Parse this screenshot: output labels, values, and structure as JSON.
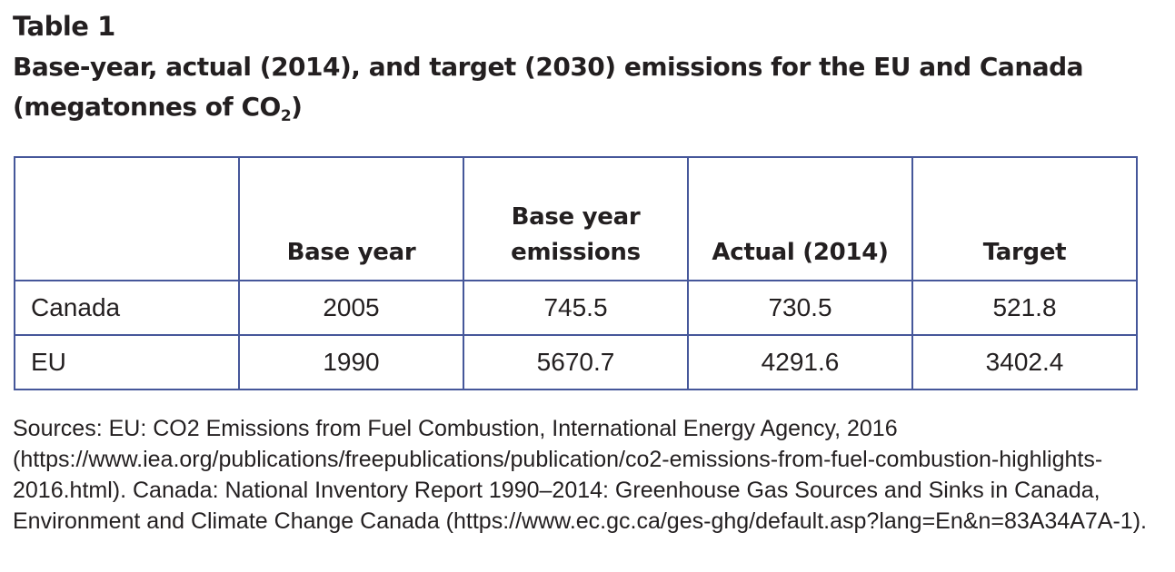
{
  "heading": {
    "label": "Table 1",
    "title_main": "Base-year, actual (2014), and target (2030) emissions for the EU and Canada (megatonnes of CO",
    "title_sub": "2",
    "title_end": ")"
  },
  "table": {
    "headers": [
      "",
      "Base year",
      "Base year emissions",
      "Actual (2014)",
      "Target"
    ],
    "rows": [
      [
        "Canada",
        "2005",
        "745.5",
        "730.5",
        "521.8"
      ],
      [
        "EU",
        "1990",
        "5670.7",
        "4291.6",
        "3402.4"
      ]
    ]
  },
  "sources": "Sources: EU: CO2 Emissions from Fuel Combustion, International Energy Agency, 2016 (https://www.iea.org/publications/freepublications/publication/co2-emissions-from-fuel-combustion-highlights-2016.html). Canada: National Inventory Report 1990–2014: Greenhouse Gas Sources and Sinks in Canada, Environment and Climate Change Canada (https://www.ec.gc.ca/ges-ghg/default.asp?lang=En&n=83A34A7A-1)."
}
